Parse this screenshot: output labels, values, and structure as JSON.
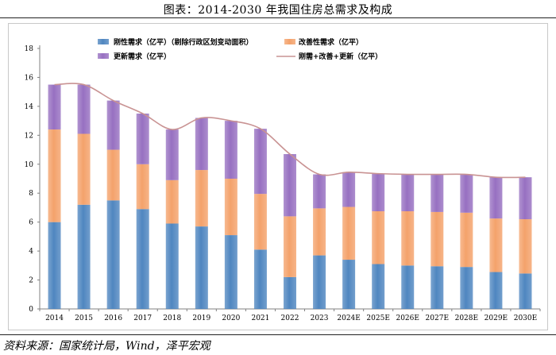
{
  "title": "图表：2014-2030 年我国住房总需求及构成",
  "source": "资料来源：国家统计局，Wind，泽平宏观",
  "colors": {
    "rigid": "#4f86c0",
    "improve": "#f4a26b",
    "renew": "#9770c1",
    "total": "#c99393"
  },
  "chart_data": {
    "type": "bar",
    "stacked": true,
    "categories": [
      "2014",
      "2015",
      "2016",
      "2017",
      "2018",
      "2019",
      "2020",
      "2021",
      "2022",
      "2023",
      "2024E",
      "2025E",
      "2026E",
      "2027E",
      "2028E",
      "2029E",
      "2030E"
    ],
    "series": [
      {
        "name": "刚性需求（亿平）（剔除行政区划变动面积）",
        "values": [
          6.0,
          7.2,
          7.5,
          6.9,
          5.9,
          5.7,
          5.1,
          4.1,
          2.2,
          3.7,
          3.4,
          3.1,
          3.0,
          2.95,
          2.9,
          2.55,
          2.45
        ]
      },
      {
        "name": "改善性需求（亿平）",
        "values": [
          6.4,
          4.9,
          3.5,
          3.1,
          3.0,
          3.9,
          3.9,
          3.85,
          4.2,
          3.25,
          3.65,
          3.65,
          3.75,
          3.75,
          3.75,
          3.7,
          3.75
        ]
      },
      {
        "name": "更新需求（亿平）",
        "values": [
          3.1,
          3.4,
          3.4,
          3.5,
          3.5,
          3.6,
          4.0,
          4.5,
          4.3,
          2.35,
          2.4,
          2.6,
          2.55,
          2.6,
          2.65,
          2.85,
          2.9
        ]
      },
      {
        "name": "刚需+改善+更新（亿平）",
        "type": "line",
        "values": [
          15.5,
          15.5,
          14.4,
          13.5,
          12.4,
          13.2,
          13.0,
          12.45,
          10.7,
          9.3,
          9.45,
          9.35,
          9.3,
          9.3,
          9.3,
          9.1,
          9.1
        ]
      }
    ],
    "yticks": [
      "0",
      "2",
      "4",
      "6",
      "8",
      "10",
      "12",
      "14",
      "16",
      "18"
    ],
    "ylim": [
      0,
      18
    ],
    "legend_position": "top"
  }
}
